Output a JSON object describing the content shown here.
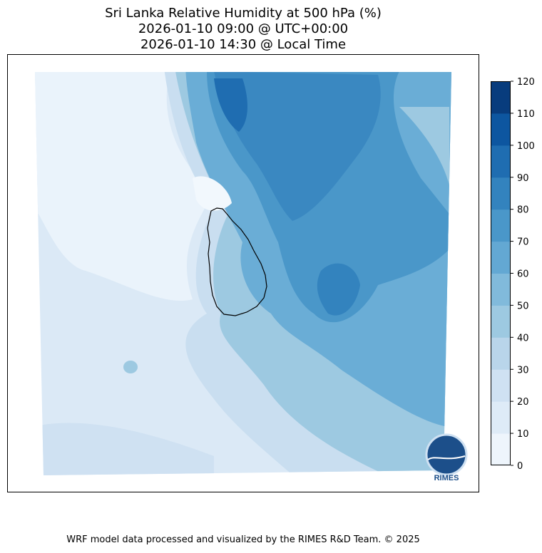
{
  "title": {
    "line1": "Sri Lanka Relative Humidity at 500 hPa (%)",
    "line2": "2026-01-10 09:00 @ UTC+00:00",
    "line3": "2026-01-10 14:30 @ Local Time"
  },
  "chart_data": {
    "type": "heatmap",
    "subtype": "filled-contour-map",
    "variable": "Relative Humidity at 500 hPa",
    "units": "%",
    "region": "Sri Lanka",
    "colorbar": {
      "levels": [
        0,
        10,
        20,
        30,
        40,
        50,
        60,
        70,
        80,
        90,
        100,
        110,
        120
      ],
      "tick_labels": [
        "0",
        "10",
        "20",
        "30",
        "40",
        "50",
        "60",
        "70",
        "80",
        "90",
        "100",
        "110",
        "120"
      ],
      "colors": [
        "#eef5fc",
        "#deebf7",
        "#cfe1f2",
        "#b9d5ea",
        "#9dc9e1",
        "#81badb",
        "#63a8d3",
        "#4a97c9",
        "#3383be",
        "#1f6db1",
        "#0d56a0",
        "#083c7d"
      ],
      "location": "right"
    },
    "summary": {
      "west": "0-30% (dry)",
      "east_and_north": "50-100% (moist)",
      "max_level_band": "90-100"
    }
  },
  "logo": {
    "text": "RIMES"
  },
  "footer": {
    "credit": "WRF model data processed and visualized by the RIMES R&D Team. © 2025"
  }
}
